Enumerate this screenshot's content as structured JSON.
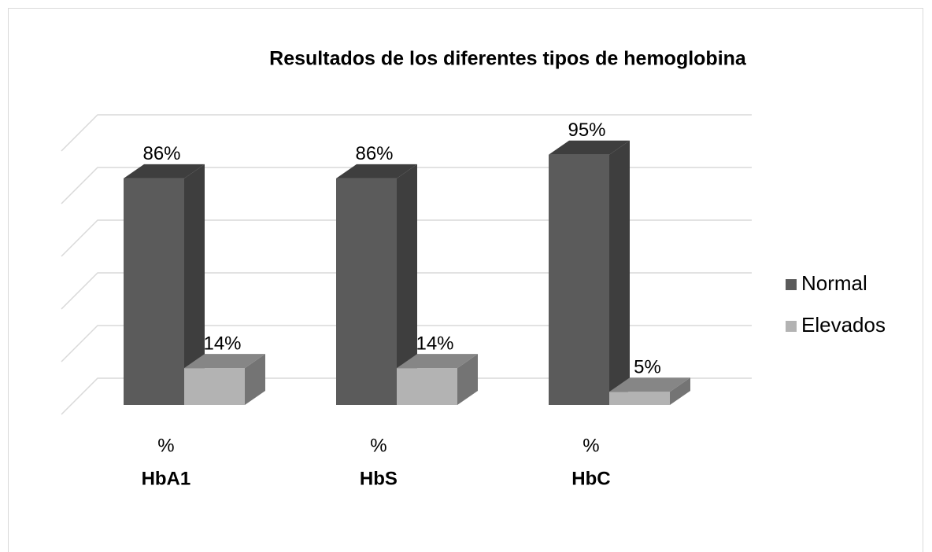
{
  "chart_data": {
    "type": "bar3d",
    "title": "Resultados de los diferentes tipos de hemoglobina",
    "categories": [
      "HbA1",
      "HbS",
      "HbC"
    ],
    "category_prefix": [
      "%",
      "%",
      "%"
    ],
    "series": [
      {
        "name": "Normal",
        "color": "#5b5b5b",
        "values": [
          86,
          86,
          95
        ],
        "value_labels": [
          "86%",
          "86%",
          "95%"
        ]
      },
      {
        "name": "Elevados",
        "color": "#b3b3b3",
        "values": [
          14,
          14,
          5
        ],
        "value_labels": [
          "14%",
          "14%",
          "5%"
        ]
      }
    ],
    "ylim": [
      0,
      100
    ],
    "yticks": [
      0,
      20,
      40,
      60,
      80,
      100
    ],
    "grid": true,
    "legend": "right"
  }
}
